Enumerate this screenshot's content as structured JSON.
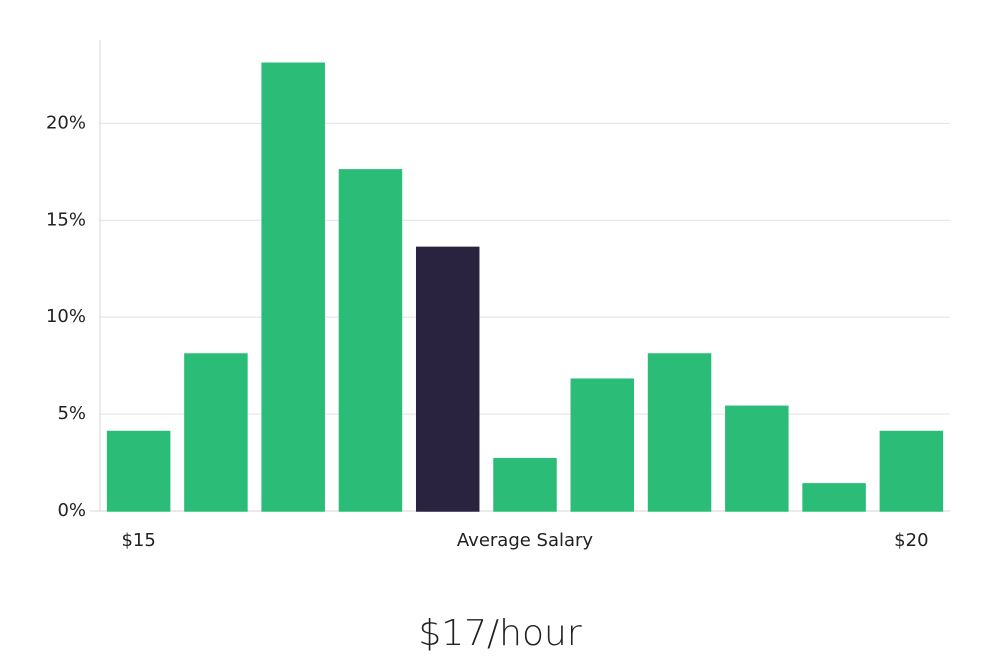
{
  "chart_data": {
    "type": "bar",
    "categories": [
      "$15",
      null,
      null,
      null,
      null,
      "Average Salary",
      null,
      null,
      null,
      null,
      "$20"
    ],
    "values": [
      4.1,
      8.1,
      23.1,
      17.6,
      13.6,
      2.7,
      6.8,
      8.1,
      5.4,
      1.4,
      4.1
    ],
    "color": "#2bbd78",
    "highlight_color": "#29233f",
    "highlight_index": 4,
    "ylim": [
      0,
      24.3
    ],
    "yticks": [
      {
        "value": 0,
        "label": "0%"
      },
      {
        "value": 5,
        "label": "5%"
      },
      {
        "value": 10,
        "label": "10%"
      },
      {
        "value": 15,
        "label": "15%"
      },
      {
        "value": 20,
        "label": "20%"
      }
    ],
    "grid": true,
    "caption": "$17/hour"
  }
}
